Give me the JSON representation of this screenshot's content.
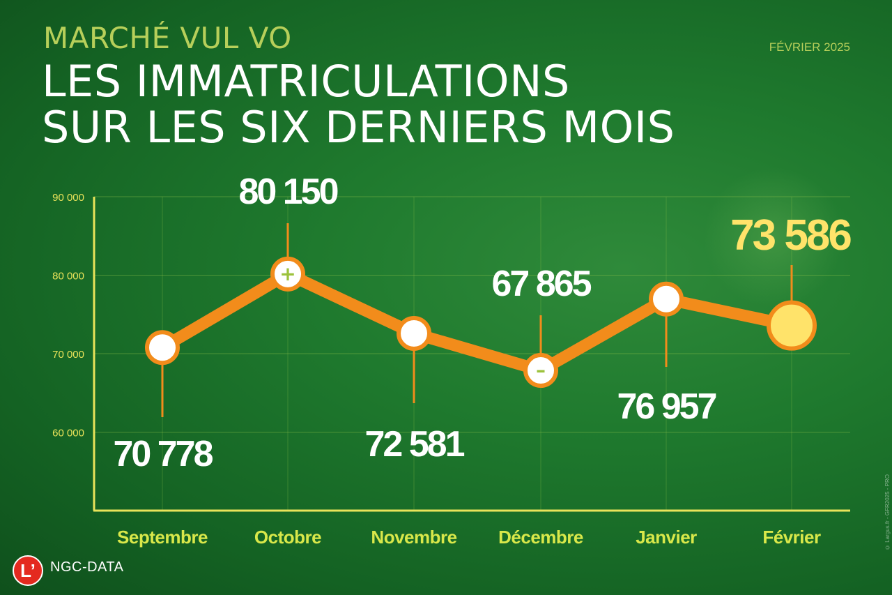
{
  "header": {
    "kicker": "MARCHÉ VUL VO",
    "title_line1": "LES IMMATRICULATIONS",
    "title_line2": "SUR LES SIX DERNIERS MOIS",
    "date": "FÉVRIER 2025"
  },
  "footer": {
    "logo": "L’",
    "brand": "NGC-DATA",
    "credit": "© Largus.fr - GFR2025 - PRO"
  },
  "colors": {
    "line": "#f28c1b",
    "axis": "#e9e35a",
    "tick_label": "#e9e35a",
    "category_label": "#d9e84a",
    "value_label": "#ffffff",
    "highlight": "#ffe36a"
  },
  "chart_data": {
    "type": "line",
    "categories": [
      "Septembre",
      "Octobre",
      "Novembre",
      "Décembre",
      "Janvier",
      "Février"
    ],
    "values": [
      70778,
      80150,
      72581,
      67865,
      76957,
      73586
    ],
    "value_labels": [
      "70 778",
      "80 150",
      "72 581",
      "67 865",
      "76 957",
      "73 586"
    ],
    "marker_icons": [
      "",
      "plus-icon",
      "",
      "minus-icon",
      "",
      ""
    ],
    "highlight_index": 5,
    "ylim": [
      50000,
      90000
    ],
    "yticks": [
      60000,
      70000,
      80000,
      90000
    ],
    "ytick_labels": [
      "60 000",
      "70 000",
      "80 000",
      "90 000"
    ],
    "grid": true,
    "xlabel": "",
    "ylabel": ""
  }
}
